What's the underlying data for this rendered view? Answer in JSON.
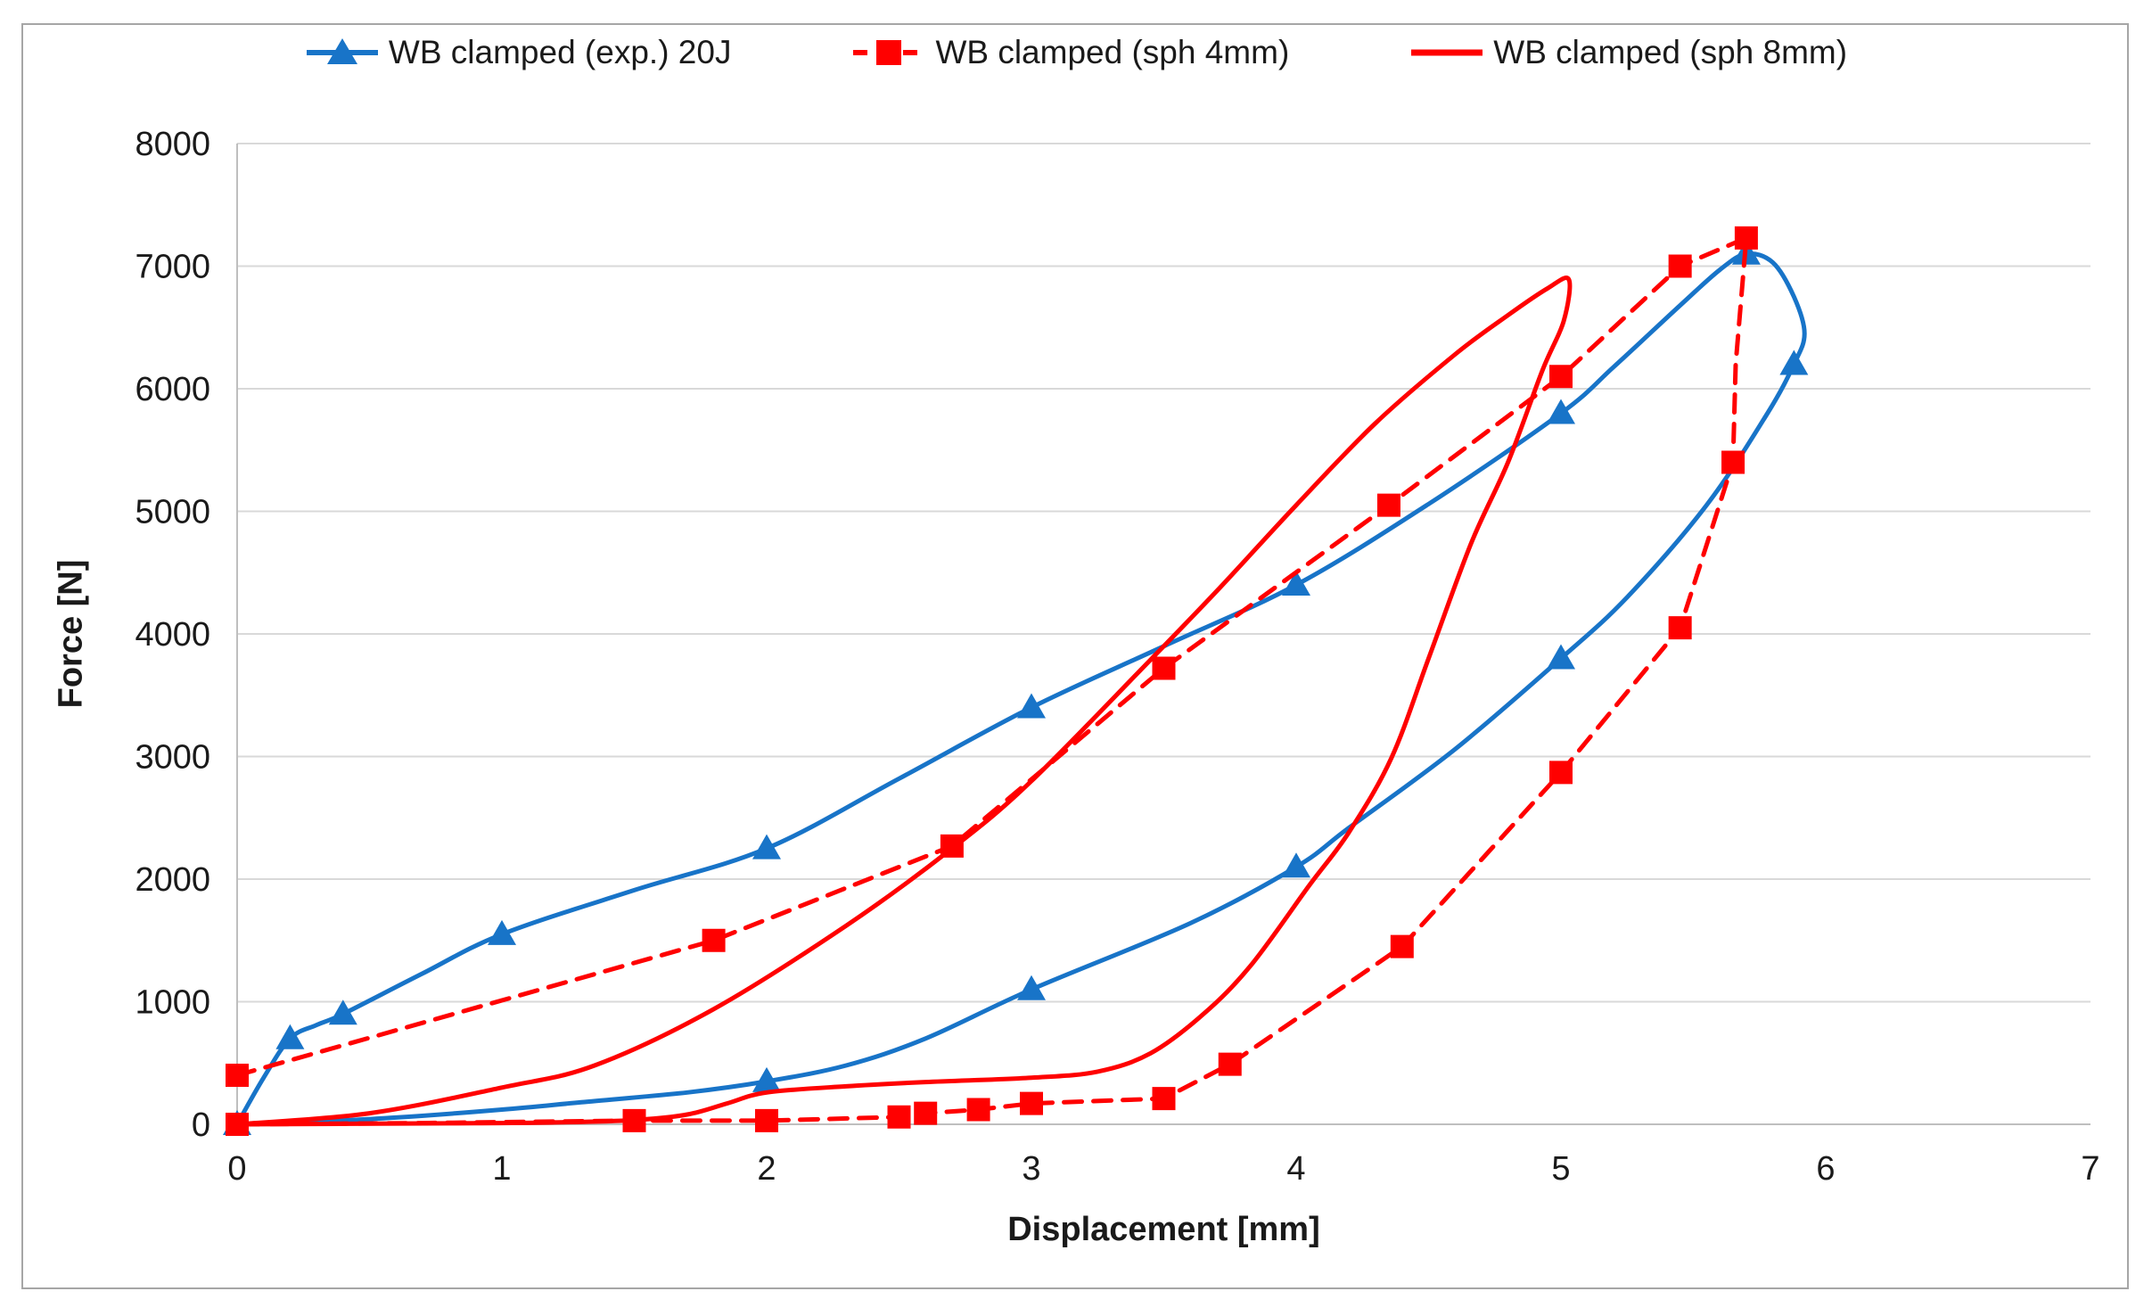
{
  "colors": {
    "blue": "#1874C8",
    "red": "#FF0000",
    "grid": "#D9D9D9",
    "axis_line": "#BFBFBF",
    "text": "#1A1A1A",
    "figure_border": "#A6A6A6",
    "background": "#FFFFFF"
  },
  "legend": {
    "items": [
      {
        "id": "exp",
        "label": "WB clamped (exp.) 20J"
      },
      {
        "id": "sph4",
        "label": "WB clamped (sph 4mm)"
      },
      {
        "id": "sph8",
        "label": "WB clamped (sph 8mm)"
      }
    ]
  },
  "chart_data": {
    "type": "line",
    "title": "",
    "xlabel": "Displacement [mm]",
    "ylabel": "Force [N]",
    "xlim": [
      0,
      7
    ],
    "ylim": [
      0,
      8000
    ],
    "x_ticks": [
      0,
      1,
      2,
      3,
      4,
      5,
      6,
      7
    ],
    "y_ticks": [
      0,
      1000,
      2000,
      3000,
      4000,
      5000,
      6000,
      7000,
      8000
    ],
    "grid": "horizontal",
    "legend_position": "top-center",
    "series": [
      {
        "name": "WB clamped (exp.) 20J",
        "color_key": "blue",
        "line": "solid",
        "marker": "triangle",
        "curve": [
          [
            0,
            0
          ],
          [
            0.1,
            380
          ],
          [
            0.2,
            700
          ],
          [
            0.3,
            810
          ],
          [
            0.4,
            900
          ],
          [
            0.7,
            1230
          ],
          [
            1,
            1550
          ],
          [
            1.5,
            1910
          ],
          [
            2,
            2250
          ],
          [
            2.5,
            2820
          ],
          [
            3,
            3400
          ],
          [
            3.5,
            3900
          ],
          [
            4,
            4400
          ],
          [
            4.5,
            5060
          ],
          [
            5,
            5800
          ],
          [
            5.2,
            6180
          ],
          [
            5.45,
            6680
          ],
          [
            5.6,
            6970
          ],
          [
            5.7,
            7100
          ],
          [
            5.8,
            7030
          ],
          [
            5.88,
            6750
          ],
          [
            5.92,
            6450
          ],
          [
            5.88,
            6200
          ],
          [
            5.78,
            5800
          ],
          [
            5.55,
            5050
          ],
          [
            5.25,
            4300
          ],
          [
            5,
            3800
          ],
          [
            4.6,
            3060
          ],
          [
            4.2,
            2420
          ],
          [
            4,
            2100
          ],
          [
            3.6,
            1640
          ],
          [
            3,
            1100
          ],
          [
            2.6,
            700
          ],
          [
            2.3,
            480
          ],
          [
            2,
            350
          ],
          [
            1.7,
            260
          ],
          [
            1.3,
            180
          ],
          [
            1,
            120
          ],
          [
            0.6,
            55
          ],
          [
            0.3,
            22
          ],
          [
            0,
            0
          ]
        ],
        "markers": [
          [
            0,
            0
          ],
          [
            0.2,
            700
          ],
          [
            0.4,
            900
          ],
          [
            1,
            1550
          ],
          [
            2,
            2250
          ],
          [
            3,
            3400
          ],
          [
            4,
            4400
          ],
          [
            5,
            5800
          ],
          [
            5.7,
            7100
          ],
          [
            5.88,
            6200
          ],
          [
            5,
            3800
          ],
          [
            4,
            2100
          ],
          [
            3,
            1100
          ],
          [
            2,
            350
          ]
        ]
      },
      {
        "name": "WB clamped (sph 4mm)",
        "color_key": "red",
        "line": "dashed",
        "marker": "square",
        "curve": [
          [
            0,
            400
          ],
          [
            1.8,
            1500
          ],
          [
            2.7,
            2270
          ],
          [
            3.5,
            3720
          ],
          [
            4.35,
            5050
          ],
          [
            5,
            6100
          ],
          [
            5.45,
            7000
          ],
          [
            5.7,
            7230
          ],
          [
            5.66,
            6200
          ],
          [
            5.65,
            5400
          ],
          [
            5.45,
            4050
          ],
          [
            5,
            2870
          ],
          [
            4.4,
            1450
          ],
          [
            3.75,
            490
          ],
          [
            3.5,
            210
          ],
          [
            3,
            170
          ],
          [
            2.8,
            120
          ],
          [
            2.6,
            90
          ],
          [
            2.5,
            60
          ],
          [
            2,
            30
          ],
          [
            1.5,
            30
          ],
          [
            0.7,
            10
          ],
          [
            0,
            0
          ]
        ],
        "markers": [
          [
            0,
            400
          ],
          [
            1.8,
            1500
          ],
          [
            2.7,
            2270
          ],
          [
            3.5,
            3720
          ],
          [
            4.35,
            5050
          ],
          [
            5,
            6100
          ],
          [
            5.45,
            7000
          ],
          [
            5.7,
            7230
          ],
          [
            5.65,
            5400
          ],
          [
            5.45,
            4050
          ],
          [
            5,
            2870
          ],
          [
            4.4,
            1450
          ],
          [
            3.75,
            490
          ],
          [
            3.5,
            210
          ],
          [
            3,
            170
          ],
          [
            2.8,
            120
          ],
          [
            2.6,
            90
          ],
          [
            2.5,
            60
          ],
          [
            2,
            30
          ],
          [
            1.5,
            30
          ],
          [
            0,
            0
          ]
        ]
      },
      {
        "name": "WB clamped (sph 8mm)",
        "color_key": "red",
        "line": "solid",
        "marker": "none",
        "curve": [
          [
            0,
            0
          ],
          [
            0.5,
            90
          ],
          [
            1,
            300
          ],
          [
            1.35,
            480
          ],
          [
            1.8,
            940
          ],
          [
            2.3,
            1620
          ],
          [
            2.7,
            2250
          ],
          [
            3,
            2800
          ],
          [
            3.43,
            3745
          ],
          [
            3.7,
            4350
          ],
          [
            4,
            5050
          ],
          [
            4.3,
            5720
          ],
          [
            4.6,
            6280
          ],
          [
            4.8,
            6600
          ],
          [
            4.95,
            6820
          ],
          [
            5.03,
            6890
          ],
          [
            5.01,
            6550
          ],
          [
            4.93,
            6150
          ],
          [
            4.8,
            5400
          ],
          [
            4.66,
            4735
          ],
          [
            4.5,
            3800
          ],
          [
            4.36,
            2990
          ],
          [
            4.2,
            2385
          ],
          [
            4.05,
            1950
          ],
          [
            3.83,
            1300
          ],
          [
            3.65,
            900
          ],
          [
            3.45,
            580
          ],
          [
            3.25,
            430
          ],
          [
            3,
            380
          ],
          [
            2.6,
            345
          ],
          [
            2.3,
            310
          ],
          [
            2,
            260
          ],
          [
            1.85,
            170
          ],
          [
            1.7,
            80
          ],
          [
            1.5,
            35
          ],
          [
            1.2,
            15
          ],
          [
            0.8,
            8
          ],
          [
            0,
            0
          ]
        ],
        "markers": []
      }
    ]
  }
}
